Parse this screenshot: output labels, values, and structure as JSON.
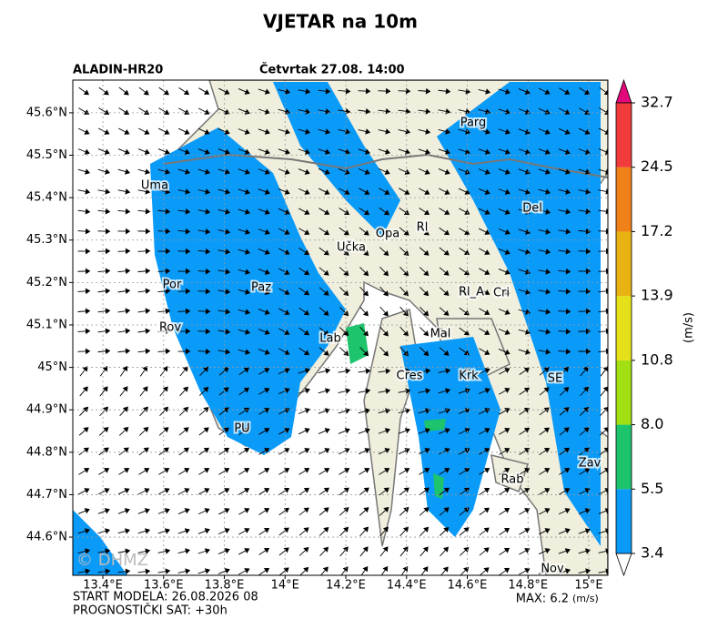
{
  "title": "VJETAR na 10m",
  "model": "ALADIN-HR20",
  "valid_time": "Četvrtak 27.08. 14:00",
  "map": {
    "lat_ticks": [
      {
        "value": 45.6,
        "label": "45.6°N"
      },
      {
        "value": 45.5,
        "label": "45.5°N"
      },
      {
        "value": 45.4,
        "label": "45.4°N"
      },
      {
        "value": 45.3,
        "label": "45.3°N"
      },
      {
        "value": 45.2,
        "label": "45.2°N"
      },
      {
        "value": 45.1,
        "label": "45.1°N"
      },
      {
        "value": 45,
        "label": "45°N"
      },
      {
        "value": 44.9,
        "label": "44.9°N"
      },
      {
        "value": 44.8,
        "label": "44.8°N"
      },
      {
        "value": 44.7,
        "label": "44.7°N"
      },
      {
        "value": 44.6,
        "label": "44.6°N"
      }
    ],
    "lon_ticks": [
      {
        "value": 13.4,
        "label": "13.4°E"
      },
      {
        "value": 13.6,
        "label": "13.6°E"
      },
      {
        "value": 13.8,
        "label": "13.8°E"
      },
      {
        "value": 14,
        "label": "14°E"
      },
      {
        "value": 14.2,
        "label": "14.2°E"
      },
      {
        "value": 14.4,
        "label": "14.4°E"
      },
      {
        "value": 14.6,
        "label": "14.6°E"
      },
      {
        "value": 14.8,
        "label": "14.8°E"
      },
      {
        "value": 15,
        "label": "15°E"
      }
    ],
    "places": [
      "Uma",
      "Parg",
      "Del",
      "Opa",
      "Rl",
      "Učka",
      "Por",
      "Paz",
      "Rl_A",
      "Cri",
      "Rov",
      "Lab",
      "Mal",
      "Cres",
      "Krk",
      "SE",
      "PU",
      "Rab",
      "Zav",
      "Nov"
    ],
    "copyright": "© DHMZ"
  },
  "colorbar": {
    "levels": [
      3.4,
      5.5,
      {
        "value": 8,
        "label": "8.0"
      },
      10.8,
      13.9,
      17.2,
      24.5,
      32.7
    ],
    "colors": [
      "#0a9af8",
      "#1dc46c",
      "#a2e014",
      "#e6e01a",
      "#e8b212",
      "#f08018",
      "#f23c3c"
    ],
    "over_color": "#e2087c",
    "under_color": "#ffffff",
    "unit": "(m/s)"
  },
  "footer": {
    "start": "START MODELA: 26.08.2026 08",
    "lead": "PROGNOSTIČKI SAT: +30h",
    "max": "MAX: 6.2",
    "max_unit": "(m/s)"
  }
}
